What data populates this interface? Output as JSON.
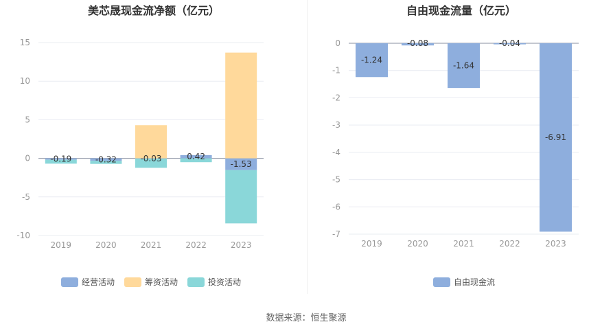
{
  "chart_data": [
    {
      "type": "bar",
      "title": "美芯晟现金流净额（亿元）",
      "categories": [
        "2019",
        "2020",
        "2021",
        "2022",
        "2023"
      ],
      "ylim": [
        -10,
        15
      ],
      "yticks": [
        15,
        10,
        5,
        0,
        -5,
        -10
      ],
      "grid": true,
      "legend_position": "bottom",
      "series": [
        {
          "name": "经营活动",
          "color": "#8eaedd",
          "values": [
            -0.19,
            -0.32,
            -0.03,
            0.42,
            -1.53
          ]
        },
        {
          "name": "筹资活动",
          "color": "#ffd99b",
          "values": [
            0.0,
            0.0,
            4.3,
            0.0,
            13.7
          ]
        },
        {
          "name": "投资活动",
          "color": "#8ad7d9",
          "values": [
            -0.5,
            -0.4,
            -1.2,
            -0.5,
            -6.9
          ]
        }
      ],
      "data_labels": [
        "-0.19",
        "-0.32",
        "-0.03",
        "0.42",
        "-1.53"
      ]
    },
    {
      "type": "bar",
      "title": "自由现金流量（亿元）",
      "categories": [
        "2019",
        "2020",
        "2021",
        "2022",
        "2023"
      ],
      "ylim": [
        -7,
        0
      ],
      "yticks": [
        0,
        -1,
        -2,
        -3,
        -4,
        -5,
        -6,
        -7
      ],
      "grid": true,
      "legend_position": "bottom",
      "series": [
        {
          "name": "自由现金流",
          "color": "#8eaedd",
          "values": [
            -1.24,
            -0.08,
            -1.64,
            -0.04,
            -6.91
          ]
        }
      ],
      "data_labels": [
        "-1.24",
        "-0.08",
        "-1.64",
        "-0.04",
        "-6.91"
      ]
    }
  ],
  "footer": {
    "source": "数据来源：恒生聚源"
  }
}
